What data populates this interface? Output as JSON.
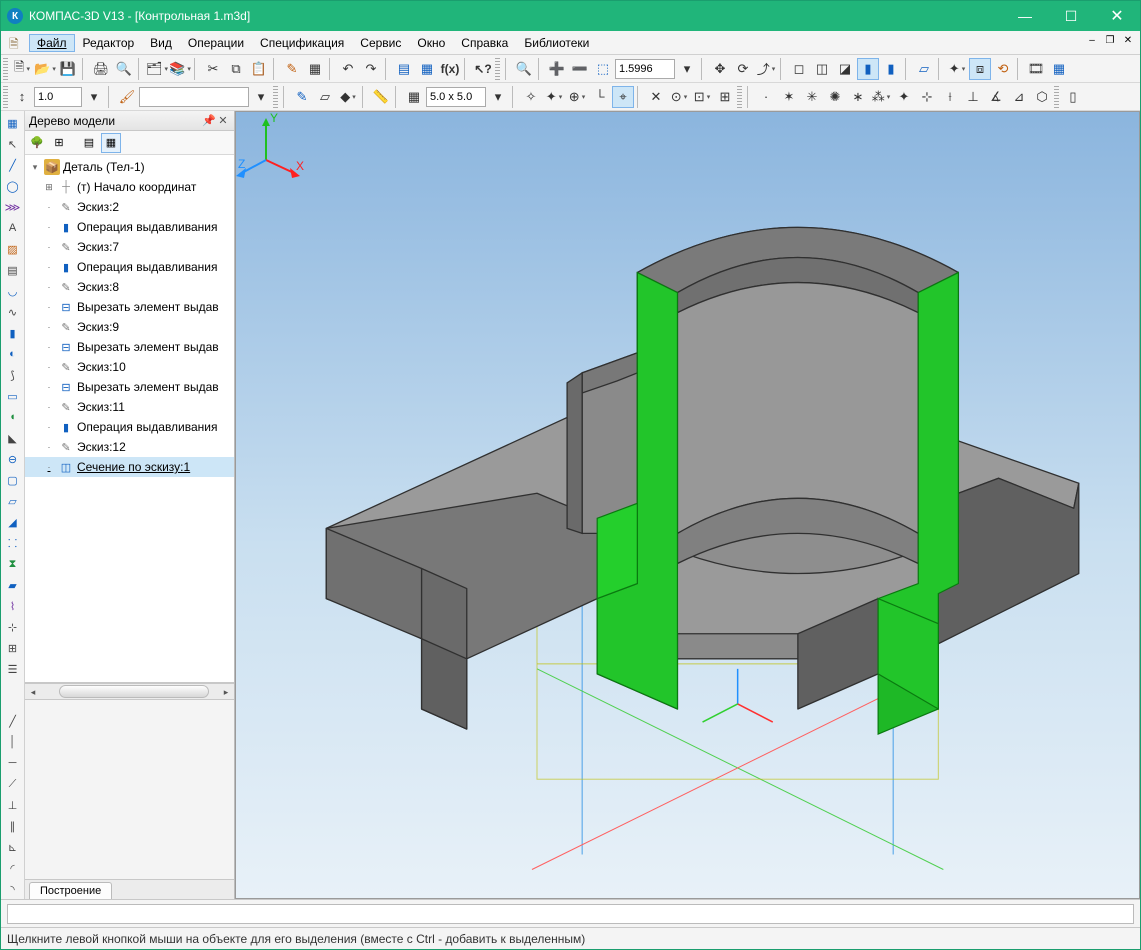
{
  "app": {
    "title": "КОМПАС-3D V13 - [Контрольная 1.m3d]",
    "titlebar_color": "#20b57a"
  },
  "menu": {
    "items": [
      "Файл",
      "Редактор",
      "Вид",
      "Операции",
      "Спецификация",
      "Сервис",
      "Окно",
      "Справка",
      "Библиотеки"
    ],
    "active_index": 0
  },
  "toolbar1": {
    "zoom_value": "1.5996"
  },
  "toolbar2": {
    "scale_value": "1.0",
    "grid_value": "5.0 x 5.0"
  },
  "tree": {
    "title": "Дерево модели",
    "root": "Деталь (Тел-1)",
    "items": [
      {
        "icon": "origin",
        "label": "(т) Начало координат",
        "expand": "plus"
      },
      {
        "icon": "sketch",
        "label": "Эскиз:2"
      },
      {
        "icon": "extrude",
        "label": "Операция выдавливания"
      },
      {
        "icon": "sketch",
        "label": "Эскиз:7"
      },
      {
        "icon": "extrude",
        "label": "Операция выдавливания"
      },
      {
        "icon": "sketch",
        "label": "Эскиз:8"
      },
      {
        "icon": "cut",
        "label": "Вырезать элемент выдав"
      },
      {
        "icon": "sketch",
        "label": "Эскиз:9"
      },
      {
        "icon": "cut",
        "label": "Вырезать элемент выдав"
      },
      {
        "icon": "sketch",
        "label": "Эскиз:10"
      },
      {
        "icon": "cut",
        "label": "Вырезать элемент выдав"
      },
      {
        "icon": "sketch",
        "label": "Эскиз:11"
      },
      {
        "icon": "extrude",
        "label": "Операция выдавливания"
      },
      {
        "icon": "sketch",
        "label": "Эскиз:12"
      },
      {
        "icon": "section",
        "label": "Сечение по эскизу:1",
        "selected": true
      }
    ],
    "bottom_tab": "Построение"
  },
  "viewport": {
    "bg_top": "#8bb5de",
    "bg_bottom": "#e8f1f8",
    "part_gray_light": "#b8b8b8",
    "part_gray_mid": "#989898",
    "part_gray_dark": "#6e6e6e",
    "part_gray_top": "#888888",
    "section_green": "#22c52a",
    "section_green_dark": "#18a020",
    "edge_color": "#303030",
    "axis_x": "#ff2020",
    "axis_y": "#20c020",
    "axis_z": "#2090ff",
    "triad": {
      "x": "X",
      "y": "Y",
      "z": "Z"
    }
  },
  "status": {
    "text": "Щелкните левой кнопкой мыши на объекте для его выделения (вместе с Ctrl - добавить к выделенным)"
  }
}
